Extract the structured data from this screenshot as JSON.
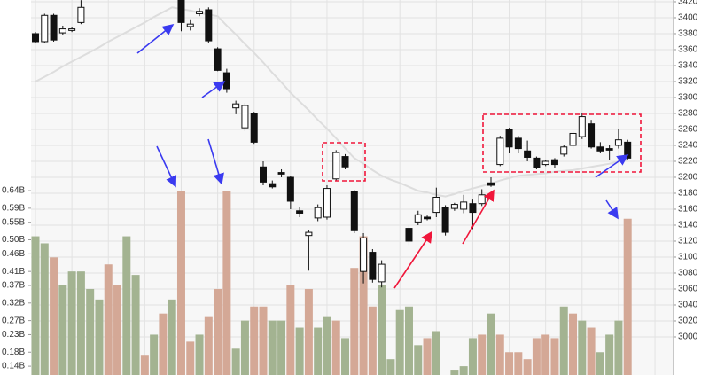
{
  "chart_data": {
    "type": "candlestick",
    "open": [
      3380,
      3370,
      3403,
      3381,
      3384,
      3394,
      null,
      null,
      null,
      null,
      null,
      null,
      null,
      null,
      null,
      null,
      3424,
      3389,
      3405,
      3410,
      3361,
      3331,
      3287,
      3262,
      3280,
      3213,
      3192,
      3206,
      3200,
      3158,
      3127,
      3149,
      3150,
      3198,
      3226,
      3182,
      3082,
      3106,
      3069,
      null,
      null,
      3136,
      3144,
      3150,
      3156,
      3162,
      3161,
      3160,
      3167,
      3167,
      3193,
      3216,
      3260,
      3249,
      3233,
      3224,
      3216,
      3222,
      3229,
      3240,
      3251,
      3267,
      3238,
      3236,
      3240,
      3244
    ],
    "high": [
      3382,
      3405,
      3405,
      3390,
      3388,
      3422,
      null,
      null,
      null,
      null,
      null,
      null,
      null,
      null,
      null,
      null,
      3430,
      3398,
      3412,
      3413,
      3363,
      3336,
      3296,
      3293,
      3282,
      3220,
      3196,
      3210,
      3202,
      3163,
      3134,
      3166,
      3190,
      3234,
      3229,
      3184,
      3130,
      3110,
      3096,
      null,
      null,
      3140,
      3158,
      3152,
      3187,
      3165,
      3168,
      3178,
      3172,
      3185,
      3200,
      3252,
      3262,
      3252,
      3246,
      3226,
      3222,
      3224,
      3240,
      3258,
      3280,
      3272,
      3244,
      3240,
      3260,
      3247
    ],
    "low": [
      3368,
      3368,
      3370,
      3378,
      3382,
      3392,
      null,
      null,
      null,
      null,
      null,
      null,
      null,
      null,
      null,
      null,
      3383,
      3384,
      3402,
      3368,
      3333,
      3306,
      3279,
      3258,
      3242,
      3190,
      3186,
      3200,
      3160,
      3150,
      3083,
      3145,
      3147,
      3195,
      3210,
      3130,
      3067,
      3068,
      3062,
      null,
      null,
      3115,
      3140,
      3146,
      3150,
      3127,
      3158,
      3155,
      3135,
      3164,
      3188,
      3214,
      3230,
      3230,
      3220,
      3210,
      3214,
      3212,
      3226,
      3236,
      3248,
      3236,
      3230,
      3222,
      3236,
      3222
    ],
    "close": [
      3370,
      3403,
      3372,
      3386,
      3386,
      3413,
      null,
      null,
      null,
      null,
      null,
      null,
      null,
      null,
      null,
      null,
      3394,
      3392,
      3408,
      3371,
      3334,
      3311,
      3292,
      3290,
      3244,
      3194,
      3188,
      3204,
      3170,
      3155,
      3131,
      3162,
      3186,
      3231,
      3213,
      3133,
      3124,
      3072,
      3091,
      null,
      null,
      3120,
      3153,
      3148,
      3175,
      3131,
      3166,
      3169,
      3156,
      3178,
      3190,
      3249,
      3238,
      3236,
      3225,
      3212,
      3220,
      3216,
      3238,
      3255,
      3276,
      3238,
      3233,
      3234,
      3247,
      3224
    ],
    "ma": [
      3320,
      3326,
      3332,
      3339,
      3345,
      3351,
      3357,
      3363,
      3370,
      3376,
      3382,
      3388,
      3394,
      3401,
      3407,
      3413,
      3411,
      3409,
      3406,
      3404,
      3402,
      3390,
      3379,
      3367,
      3356,
      3344,
      3331,
      3319,
      3306,
      3295,
      3284,
      3272,
      3261,
      3249,
      3236,
      3224,
      3217,
      3209,
      3202,
      3197,
      3193,
      3188,
      3183,
      3181,
      3178,
      3176,
      3179,
      3183,
      3186,
      3189,
      3192,
      3196,
      3199,
      3202,
      3203,
      3204,
      3205,
      3207,
      3208,
      3209,
      3211,
      3213,
      3215,
      3217,
      3220,
      3222
    ],
    "ma_color": "#dddddd",
    "volume": [
      0.51,
      0.49,
      0.45,
      0.37,
      0.41,
      0.41,
      0.36,
      0.33,
      0.43,
      0.37,
      0.51,
      0.4,
      0.17,
      0.23,
      0.29,
      0.33,
      0.64,
      0.21,
      0.23,
      0.28,
      0.36,
      0.64,
      0.19,
      0.27,
      0.31,
      0.31,
      0.27,
      0.27,
      0.37,
      0.25,
      0.36,
      0.25,
      0.28,
      0.27,
      0.22,
      0.42,
      0.51,
      0.31,
      0.37,
      0.16,
      0.3,
      0.31,
      0.2,
      0.22,
      0.24,
      null,
      0.13,
      0.14,
      0.22,
      0.23,
      0.29,
      0.23,
      0.18,
      0.18,
      0.16,
      0.22,
      0.23,
      0.22,
      0.31,
      0.29,
      0.27,
      0.25,
      0.18,
      0.23,
      0.27,
      0.56
    ],
    "volume_colors": [
      "#a3b391",
      "#a3b391",
      "#d4a896",
      "#a3b391",
      "#a3b391",
      "#a3b391",
      "#a3b391",
      "#a3b391",
      "#d4a896",
      "#d4a896",
      "#a3b391",
      "#a3b391",
      "#d4a896",
      "#a3b391",
      "#d4a896",
      "#a3b391",
      "#d4a896",
      "#d4a896",
      "#a3b391",
      "#d4a896",
      "#d4a896",
      "#d4a896",
      "#a3b391",
      "#a3b391",
      "#d4a896",
      "#d4a896",
      "#a3b391",
      "#a3b391",
      "#d4a896",
      "#a3b391",
      "#d4a896",
      "#a3b391",
      "#a3b391",
      "#d4a896",
      "#a3b391",
      "#d4a896",
      "#d4a896",
      "#d4a896",
      "#a3b391",
      "#a3b391",
      "#a3b391",
      "#a3b391",
      "#a3b391",
      "#d4a896",
      "#a3b391",
      "#a3b391",
      "#a3b391",
      "#a3b391",
      "#a3b391",
      "#d4a896",
      "#a3b391",
      "#d4a896",
      "#d4a896",
      "#d4a896",
      "#d4a896",
      "#d4a896",
      "#d4a896",
      "#d4a896",
      "#a3b391",
      "#d4a896",
      "#a3b391",
      "#d4a896",
      "#a3b391",
      "#a3b391",
      "#a3b391",
      "#d4a896"
    ],
    "ylim": [
      2952.2,
      3422.2
    ],
    "yticks": [
      3000,
      3020,
      3040,
      3060,
      3080,
      3100,
      3120,
      3140,
      3160,
      3180,
      3200,
      3220,
      3240,
      3260,
      3280,
      3300,
      3320,
      3340,
      3360,
      3380,
      3400,
      3420
    ],
    "y2lim": [
      0.115,
      1.183
    ],
    "y2ticks": [
      {
        "value": 0.14,
        "label": "0.14B"
      },
      {
        "value": 0.18,
        "label": "0.18B"
      },
      {
        "value": 0.23,
        "label": "0.23B"
      },
      {
        "value": 0.27,
        "label": "0.27B"
      },
      {
        "value": 0.32,
        "label": "0.32B"
      },
      {
        "value": 0.37,
        "label": "0.37B"
      },
      {
        "value": 0.41,
        "label": "0.41B"
      },
      {
        "value": 0.46,
        "label": "0.46B"
      },
      {
        "value": 0.5,
        "label": "0.50B"
      },
      {
        "value": 0.55,
        "label": "0.55B"
      },
      {
        "value": 0.59,
        "label": "0.59B"
      },
      {
        "value": 0.64,
        "label": "0.64B"
      }
    ],
    "grid": true
  }
}
